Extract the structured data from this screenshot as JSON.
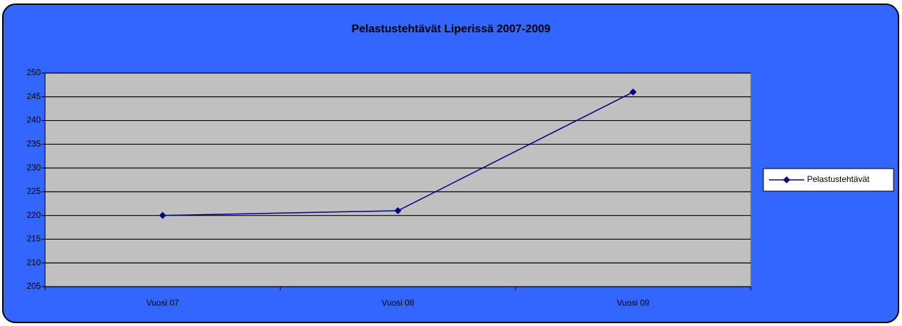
{
  "chart_data": {
    "type": "line",
    "title": "Pelastustehtävät Liperissä 2007-2009",
    "categories": [
      "Vuosi 07",
      "Vuosi 08",
      "Vuosi 09"
    ],
    "series": [
      {
        "name": "Pelastustehtävät",
        "color": "#000080",
        "values": [
          220,
          221,
          246
        ]
      }
    ],
    "ylim": [
      205,
      250
    ],
    "yticks": [
      205,
      210,
      215,
      220,
      225,
      230,
      235,
      240,
      245,
      250
    ],
    "grid": true,
    "legend": "right"
  }
}
